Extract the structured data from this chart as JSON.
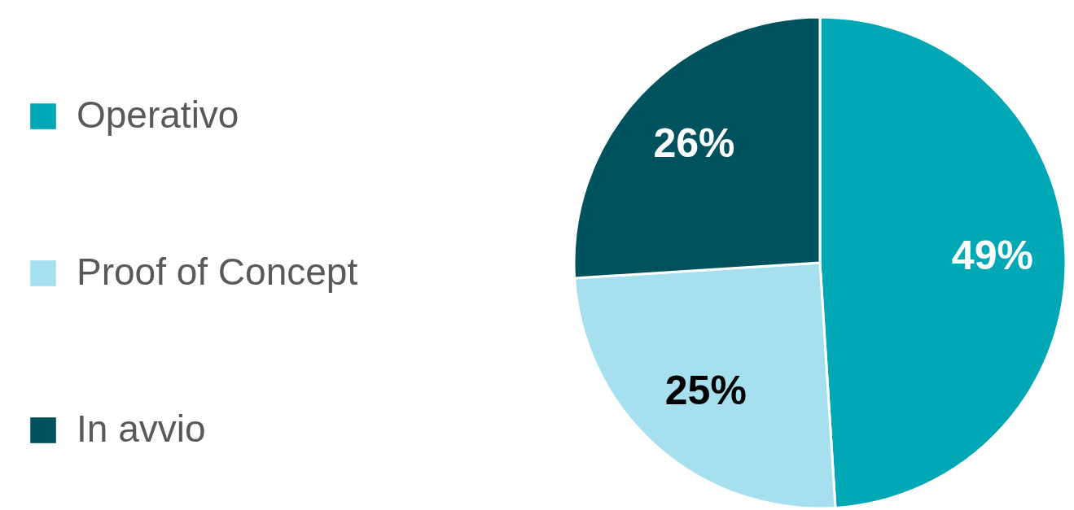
{
  "chart_data": {
    "type": "pie",
    "categories": [
      "Operativo",
      "Proof of Concept",
      "In avvio"
    ],
    "values": [
      49,
      25,
      26
    ],
    "colors": [
      "#00a7b5",
      "#a6dfee",
      "#00535e"
    ],
    "value_labels": [
      "49%",
      "25%",
      "26%"
    ],
    "legend": "left"
  }
}
